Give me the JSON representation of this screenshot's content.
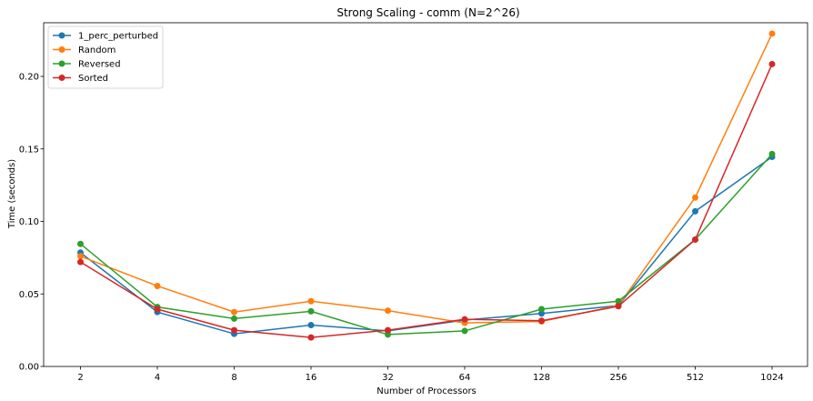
{
  "chart_data": {
    "type": "line",
    "title": "Strong Scaling - comm (N=2^26)",
    "xlabel": "Number of Processors",
    "ylabel": "Time (seconds)",
    "categories": [
      "2",
      "4",
      "8",
      "16",
      "32",
      "64",
      "128",
      "256",
      "512",
      "1024"
    ],
    "ylim": [
      0,
      0.237
    ],
    "yticks": [
      "0.00",
      "0.05",
      "0.10",
      "0.15",
      "0.20"
    ],
    "ytick_values": [
      0,
      0.05,
      0.1,
      0.15,
      0.2
    ],
    "grid": false,
    "legend": "top-left",
    "series": [
      {
        "name": "1_perc_perturbed",
        "color": "#1f77b4",
        "values": [
          0.0785,
          0.0375,
          0.0225,
          0.0285,
          0.0245,
          0.032,
          0.0365,
          0.042,
          0.107,
          0.1445
        ]
      },
      {
        "name": "Random",
        "color": "#ff7f0e",
        "values": [
          0.076,
          0.0555,
          0.0375,
          0.045,
          0.0385,
          0.03,
          0.031,
          0.042,
          0.1165,
          0.2295
        ]
      },
      {
        "name": "Reversed",
        "color": "#2ca02c",
        "values": [
          0.0845,
          0.041,
          0.033,
          0.038,
          0.022,
          0.0245,
          0.0395,
          0.045,
          0.0875,
          0.1465
        ]
      },
      {
        "name": "Sorted",
        "color": "#d62728",
        "values": [
          0.072,
          0.0395,
          0.025,
          0.02,
          0.025,
          0.0325,
          0.0315,
          0.0415,
          0.0875,
          0.2085
        ]
      }
    ]
  }
}
